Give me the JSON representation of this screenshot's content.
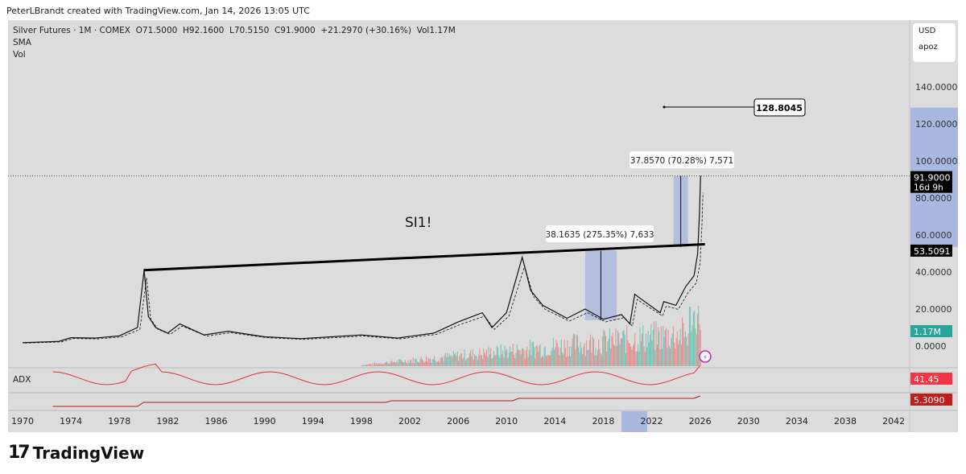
{
  "header": {
    "credit": "PeterLBrandt created with TradingView.com, Jan 14, 2026 13:05 UTC"
  },
  "legend": {
    "line1": "Silver Futures · 1M · COMEX  O71.5000  H92.1600  L70.5150  C91.9000  +21.2970 (+30.16%)  Vol1.17M",
    "sma": "SMA",
    "vol": "Vol"
  },
  "currency": {
    "ccy": "USD",
    "mode": "apoz"
  },
  "symbol_label": "SI1!",
  "price_axis": [
    "140.0000",
    "120.0000",
    "100.0000",
    "80.0000",
    "60.0000",
    "40.0000",
    "20.0000",
    "0.0000"
  ],
  "price_tags": {
    "last": "91.9000",
    "countdown": "16d 9h",
    "line": "53.5091",
    "volume": "1.17M",
    "adx": "41.45",
    "ind2": "5.3090",
    "target": "128.8045"
  },
  "measures": [
    {
      "text": "38.1635 (275.35%) 7,633"
    },
    {
      "text": "37.8570 (70.28%) 7,571"
    }
  ],
  "pane_label": "ADX",
  "time_axis": [
    "1970",
    "1974",
    "1978",
    "1982",
    "1986",
    "1990",
    "1994",
    "1998",
    "2002",
    "2006",
    "2010",
    "2014",
    "2018",
    "2022",
    "2026",
    "2030",
    "2034",
    "2038",
    "2042"
  ],
  "footer": {
    "brand": "TradingView"
  },
  "colors": {
    "bg": "#dcdcdc",
    "measure": "#aab8e0",
    "adx": "#e0323c",
    "vol_up": "#6fc3b3",
    "vol_down": "#e88a8a"
  },
  "chart_data": {
    "type": "line",
    "title": "Silver Futures 1M COMEX",
    "x": [
      1970,
      1973,
      1974,
      1976,
      1978,
      1979.5,
      1980.05,
      1980.4,
      1981,
      1982,
      1983,
      1985,
      1987,
      1990,
      1993,
      1998,
      2001,
      2004,
      2006,
      2008,
      2008.8,
      2010,
      2011.3,
      2012,
      2013,
      2015,
      2016.5,
      2018,
      2019.5,
      2020.2,
      2020.6,
      2021,
      2022.7,
      2023,
      2024,
      2024.8,
      2025.5,
      2025.8,
      2025.95,
      2026.04
    ],
    "y": [
      1.8,
      2.5,
      4.5,
      4.3,
      5.5,
      10,
      41,
      16,
      10,
      7,
      12,
      6,
      8,
      5,
      4,
      6,
      4.3,
      7,
      13,
      18,
      10,
      18,
      48,
      30,
      22,
      15,
      20,
      14.5,
      17,
      12,
      28,
      26,
      18,
      24,
      22,
      32,
      38,
      50,
      72,
      92
    ],
    "trendline": [
      [
        1980,
        41
      ],
      [
        2026.4,
        55
      ]
    ],
    "ylim": [
      0,
      150
    ],
    "xlim": [
      1969,
      2044
    ]
  }
}
